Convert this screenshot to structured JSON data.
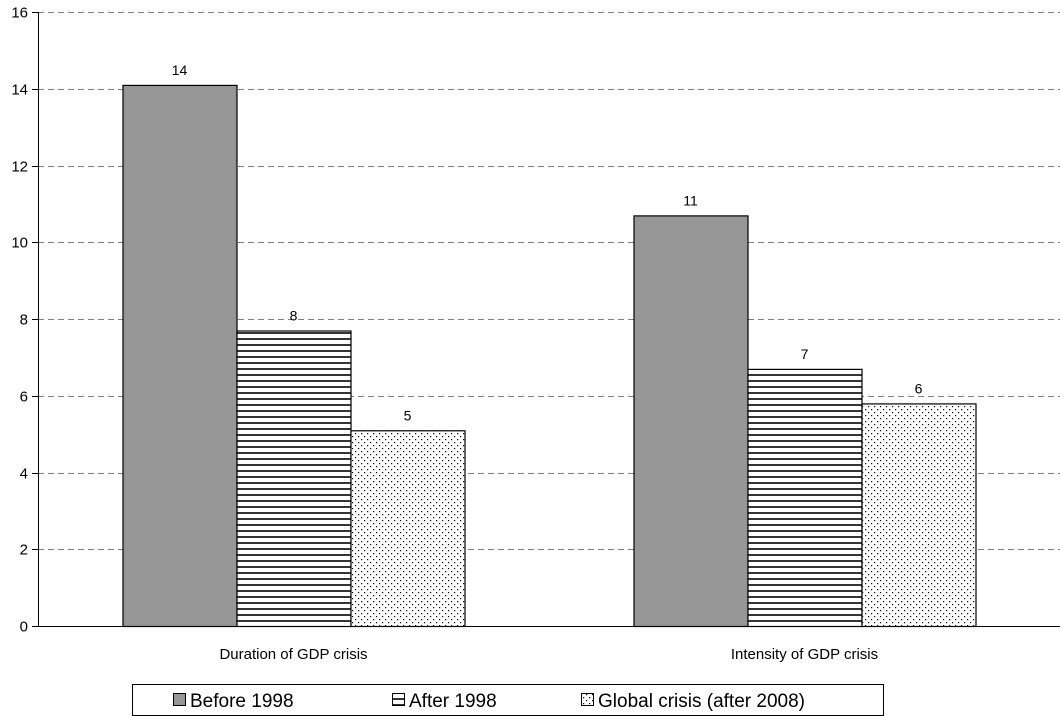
{
  "chart_data": {
    "type": "bar",
    "categories": [
      "Duration of GDP crisis",
      "Intensity of GDP crisis"
    ],
    "series": [
      {
        "name": "Before 1998",
        "values": [
          14.1,
          10.7
        ],
        "labels": [
          "14",
          "11"
        ],
        "pattern": "solid",
        "color": "#969696"
      },
      {
        "name": "After 1998",
        "values": [
          7.7,
          6.7
        ],
        "labels": [
          "8",
          "7"
        ],
        "pattern": "horizontal-lines",
        "color": "#000000"
      },
      {
        "name": "Global crisis (after 2008)",
        "values": [
          5.1,
          5.8
        ],
        "labels": [
          "5",
          "6"
        ],
        "pattern": "dots",
        "color": "#000000"
      }
    ],
    "ylim": [
      0,
      16
    ],
    "yticks": [
      0,
      2,
      4,
      6,
      8,
      10,
      12,
      14,
      16
    ],
    "grid": true,
    "legend_position": "bottom"
  }
}
